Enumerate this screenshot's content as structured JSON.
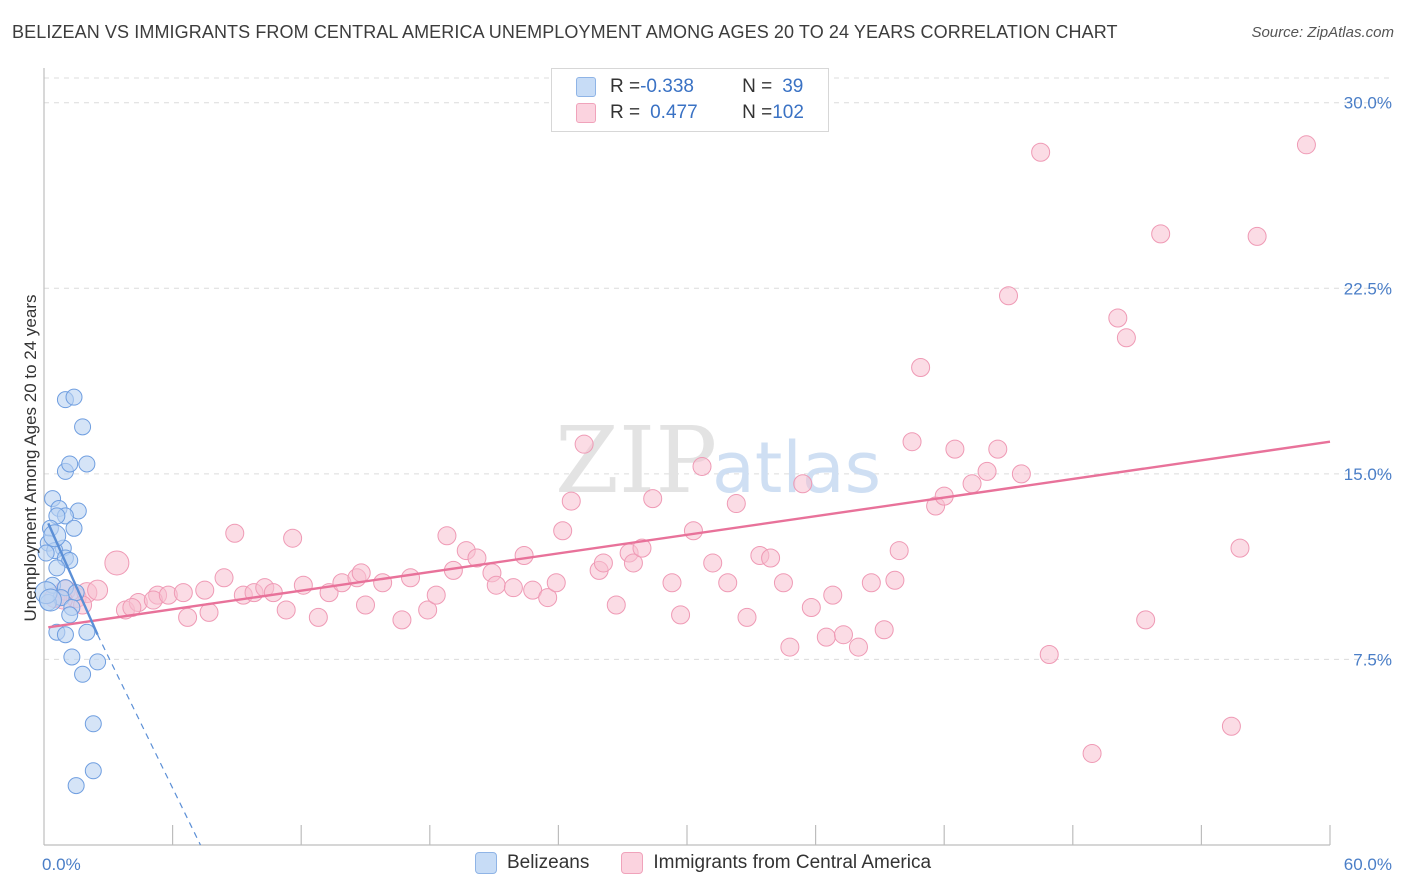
{
  "title": "BELIZEAN VS IMMIGRANTS FROM CENTRAL AMERICA UNEMPLOYMENT AMONG AGES 20 TO 24 YEARS CORRELATION CHART",
  "source": "Source: ZipAtlas.com",
  "watermark": {
    "zip": "ZIP",
    "atlas": "atlas"
  },
  "legend": {
    "rows": [
      {
        "r_label": "R = ",
        "r_value": "-0.338",
        "n_label": "N = ",
        "n_value": "39",
        "color": "#a8c8f0"
      },
      {
        "r_label": "R = ",
        "r_value": "0.477",
        "n_label": "N = ",
        "n_value": "102",
        "color": "#f7b6c8"
      }
    ]
  },
  "bottom_legend": [
    "Belizeans",
    "Immigrants from Central America"
  ],
  "chart_data": {
    "type": "scatter",
    "xlabel": "",
    "ylabel": "Unemployment Among Ages 20 to 24 years",
    "xlim": [
      0,
      60
    ],
    "ylim": [
      0,
      31
    ],
    "x_tick_labels": [
      "0.0%",
      "60.0%"
    ],
    "y_ticks": [
      7.5,
      15.0,
      22.5,
      30.0
    ],
    "y_tick_labels": [
      "7.5%",
      "15.0%",
      "22.5%",
      "30.0%"
    ],
    "grid": true,
    "colors": {
      "belizeans": "#5b8fd6",
      "immigrants": "#e8729a"
    },
    "series": [
      {
        "name": "Belizeans",
        "color": "#5b8fd6",
        "trend": {
          "x": [
            0.2,
            2.5
          ],
          "y": [
            13.0,
            8.5
          ],
          "dash_to": [
            7.3,
            0
          ]
        },
        "points": [
          [
            1.0,
            18.0
          ],
          [
            1.4,
            18.1
          ],
          [
            1.8,
            16.9
          ],
          [
            2.0,
            15.4
          ],
          [
            1.0,
            15.1
          ],
          [
            1.2,
            15.4
          ],
          [
            0.4,
            14.0
          ],
          [
            0.7,
            13.6
          ],
          [
            1.6,
            13.5
          ],
          [
            1.0,
            13.3
          ],
          [
            0.6,
            13.3
          ],
          [
            0.3,
            12.8
          ],
          [
            1.4,
            12.8
          ],
          [
            0.2,
            12.2
          ],
          [
            0.9,
            12.0
          ],
          [
            0.5,
            11.9
          ],
          [
            0.1,
            11.8
          ],
          [
            1.0,
            11.6
          ],
          [
            1.2,
            11.5
          ],
          [
            0.6,
            11.2
          ],
          [
            0.4,
            10.5
          ],
          [
            1.0,
            10.4
          ],
          [
            1.5,
            10.2
          ],
          [
            0.8,
            10.0
          ],
          [
            0.2,
            9.8
          ],
          [
            1.3,
            9.6
          ],
          [
            1.2,
            9.3
          ],
          [
            0.6,
            8.6
          ],
          [
            2.0,
            8.6
          ],
          [
            1.0,
            8.5
          ],
          [
            1.3,
            7.6
          ],
          [
            2.5,
            7.4
          ],
          [
            1.8,
            6.9
          ],
          [
            2.3,
            4.9
          ],
          [
            2.3,
            3.0
          ],
          [
            1.5,
            2.4
          ],
          [
            0.1,
            10.2
          ],
          [
            0.3,
            9.9
          ],
          [
            0.5,
            12.5
          ]
        ]
      },
      {
        "name": "Immigrants from Central America",
        "color": "#e8729a",
        "trend": {
          "x": [
            0.2,
            60
          ],
          "y": [
            8.8,
            16.3
          ]
        },
        "points": [
          [
            0.5,
            10.0
          ],
          [
            1.0,
            10.3
          ],
          [
            1.5,
            10.0
          ],
          [
            2.0,
            10.2
          ],
          [
            2.5,
            10.3
          ],
          [
            3.4,
            11.4
          ],
          [
            3.8,
            9.5
          ],
          [
            4.4,
            9.8
          ],
          [
            5.3,
            10.1
          ],
          [
            4.1,
            9.6
          ],
          [
            5.1,
            9.9
          ],
          [
            5.8,
            10.1
          ],
          [
            6.5,
            10.2
          ],
          [
            6.7,
            9.2
          ],
          [
            7.5,
            10.3
          ],
          [
            7.7,
            9.4
          ],
          [
            8.4,
            10.8
          ],
          [
            8.9,
            12.6
          ],
          [
            9.3,
            10.1
          ],
          [
            9.8,
            10.2
          ],
          [
            10.3,
            10.4
          ],
          [
            10.7,
            10.2
          ],
          [
            11.3,
            9.5
          ],
          [
            11.6,
            12.4
          ],
          [
            12.1,
            10.5
          ],
          [
            12.8,
            9.2
          ],
          [
            13.3,
            10.2
          ],
          [
            13.9,
            10.6
          ],
          [
            14.6,
            10.8
          ],
          [
            14.8,
            11.0
          ],
          [
            15.0,
            9.7
          ],
          [
            15.8,
            10.6
          ],
          [
            16.7,
            9.1
          ],
          [
            17.1,
            10.8
          ],
          [
            17.9,
            9.5
          ],
          [
            18.3,
            10.1
          ],
          [
            18.8,
            12.5
          ],
          [
            19.1,
            11.1
          ],
          [
            19.7,
            11.9
          ],
          [
            20.2,
            11.6
          ],
          [
            20.9,
            11.0
          ],
          [
            21.1,
            10.5
          ],
          [
            21.9,
            10.4
          ],
          [
            22.4,
            11.7
          ],
          [
            22.8,
            10.3
          ],
          [
            23.5,
            10.0
          ],
          [
            23.9,
            10.6
          ],
          [
            24.2,
            12.7
          ],
          [
            24.6,
            13.9
          ],
          [
            25.2,
            16.2
          ],
          [
            25.9,
            11.1
          ],
          [
            26.1,
            11.4
          ],
          [
            26.7,
            9.7
          ],
          [
            27.3,
            11.8
          ],
          [
            27.5,
            11.4
          ],
          [
            27.9,
            12.0
          ],
          [
            28.4,
            14.0
          ],
          [
            29.3,
            10.6
          ],
          [
            29.7,
            9.3
          ],
          [
            30.3,
            12.7
          ],
          [
            30.7,
            15.3
          ],
          [
            31.2,
            11.4
          ],
          [
            31.9,
            10.6
          ],
          [
            32.3,
            13.8
          ],
          [
            32.8,
            9.2
          ],
          [
            33.4,
            11.7
          ],
          [
            33.9,
            11.6
          ],
          [
            34.5,
            10.6
          ],
          [
            34.8,
            8.0
          ],
          [
            35.4,
            14.6
          ],
          [
            35.8,
            9.6
          ],
          [
            36.5,
            8.4
          ],
          [
            36.8,
            10.1
          ],
          [
            37.3,
            8.5
          ],
          [
            38.0,
            8.0
          ],
          [
            38.6,
            10.6
          ],
          [
            39.2,
            8.7
          ],
          [
            39.7,
            10.7
          ],
          [
            39.9,
            11.9
          ],
          [
            40.5,
            16.3
          ],
          [
            40.9,
            19.3
          ],
          [
            41.6,
            13.7
          ],
          [
            42.0,
            14.1
          ],
          [
            42.5,
            16.0
          ],
          [
            43.3,
            14.6
          ],
          [
            44.0,
            15.1
          ],
          [
            44.5,
            16.0
          ],
          [
            45.0,
            22.2
          ],
          [
            45.6,
            15.0
          ],
          [
            46.5,
            28.0
          ],
          [
            46.9,
            7.7
          ],
          [
            48.9,
            3.7
          ],
          [
            50.1,
            21.3
          ],
          [
            50.5,
            20.5
          ],
          [
            51.4,
            9.1
          ],
          [
            52.1,
            24.7
          ],
          [
            55.8,
            12.0
          ],
          [
            56.6,
            24.6
          ],
          [
            55.4,
            4.8
          ],
          [
            58.9,
            28.3
          ],
          [
            0.9,
            9.9
          ],
          [
            1.8,
            9.7
          ]
        ]
      }
    ]
  }
}
